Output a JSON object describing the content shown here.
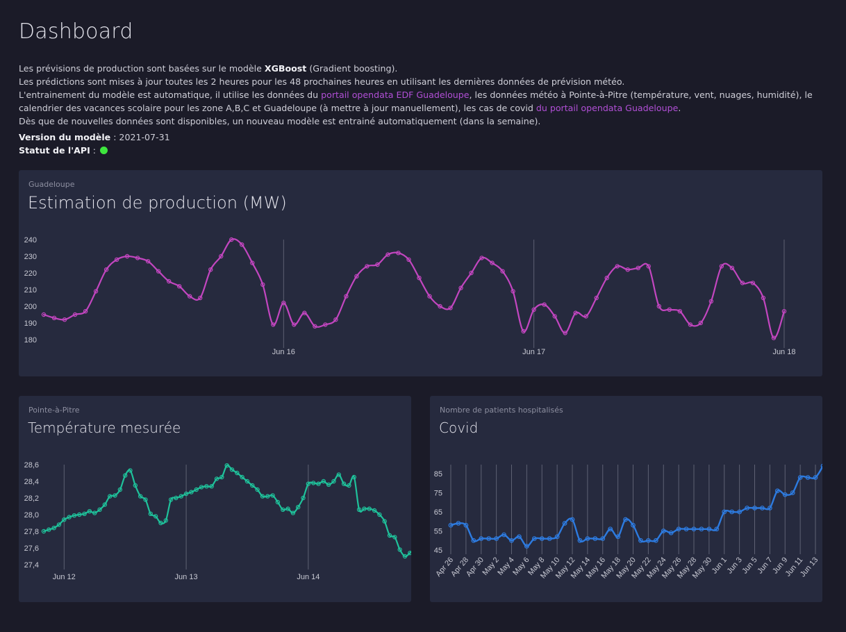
{
  "header": {
    "title": "Dashboard",
    "intro": {
      "line1_prefix": "Les prévisions de production sont basées sur le modèle ",
      "line1_bold": "XGBoost",
      "line1_suffix": " (Gradient boosting).",
      "line2": "Les prédictions sont mises à jour toutes les 2 heures pour les 48 prochaines heures en utilisant les dernières données de prévision météo.",
      "line3_prefix": "L'entrainement du modèle est automatique, il utilise les données du ",
      "link1": "portail opendata EDF Guadeloupe",
      "line3_mid": ", les données météo à Pointe-à-Pitre (température, vent, nuages, humidité), le calendrier des vacances scolaire pour les zone A,B,C et Guadeloupe (à mettre à jour manuellement), les cas de covid ",
      "link2": "du portail opendata Guadeloupe",
      "line3_suffix": ".",
      "line4": "Dès que de nouvelles données sont disponibles, un nouveau modèle est entrainé automatiquement (dans la semaine)."
    },
    "model_version_label": "Version du modèle",
    "model_version_value": " : 2021-07-31",
    "api_status_label": "Statut de l'API",
    "api_status_sep": " :",
    "api_status_color": "#3ee63e"
  },
  "cards": {
    "production": {
      "subtitle": "Guadeloupe",
      "title": "Estimation de production (MW)"
    },
    "temperature": {
      "subtitle": "Pointe-à-Pitre",
      "title": "Température mesurée"
    },
    "covid": {
      "subtitle": "Nombre de patients hospitalisés",
      "title": "Covid"
    }
  },
  "chart_data": [
    {
      "id": "production",
      "type": "line",
      "color": "#c346c0",
      "ylim": [
        180,
        240
      ],
      "yticks": [
        "180",
        "190",
        "200",
        "210",
        "220",
        "230",
        "240"
      ],
      "xlim": [
        0,
        74
      ],
      "xticks": [
        {
          "x": 23,
          "label": "Jun 16"
        },
        {
          "x": 47,
          "label": "Jun 17"
        },
        {
          "x": 71,
          "label": "Jun 18"
        }
      ],
      "grid": "vertical",
      "values": [
        195,
        193,
        192,
        195,
        197,
        209,
        222,
        228,
        230,
        229,
        227,
        221,
        215,
        212,
        206,
        205,
        222,
        230,
        240,
        237,
        226,
        213,
        189,
        202,
        189,
        196,
        188,
        189,
        192,
        206,
        218,
        224,
        225,
        231,
        232,
        228,
        217,
        206,
        200,
        199,
        211,
        220,
        229,
        226,
        221,
        209,
        185,
        198,
        201,
        194,
        184,
        196,
        194,
        205,
        217,
        224,
        222,
        223,
        224,
        200,
        198,
        197,
        189,
        190,
        203,
        224,
        223,
        214,
        214,
        205,
        181,
        197
      ]
    },
    {
      "id": "temperature",
      "type": "line",
      "color": "#1fc29b",
      "ylim": [
        27.4,
        28.6
      ],
      "yticks": [
        "27,4",
        "27,6",
        "27,8",
        "28,0",
        "28,2",
        "28,4",
        "28,6"
      ],
      "xlim": [
        0,
        71
      ],
      "xticks": [
        {
          "x": 4,
          "label": "Jun 12"
        },
        {
          "x": 28,
          "label": "Jun 13"
        },
        {
          "x": 52,
          "label": "Jun 14"
        }
      ],
      "grid": "vertical",
      "values": [
        27.8,
        27.82,
        27.84,
        27.88,
        27.94,
        27.97,
        27.99,
        28.0,
        28.01,
        28.04,
        28.02,
        28.06,
        28.12,
        28.22,
        28.23,
        28.3,
        28.47,
        28.53,
        28.35,
        28.22,
        28.18,
        28.01,
        27.98,
        27.9,
        27.93,
        28.18,
        28.2,
        28.22,
        28.25,
        28.27,
        28.3,
        28.33,
        28.34,
        28.34,
        28.43,
        28.45,
        28.59,
        28.54,
        28.5,
        28.45,
        28.4,
        28.35,
        28.3,
        28.22,
        28.22,
        28.23,
        28.15,
        28.06,
        28.07,
        28.02,
        28.09,
        28.2,
        28.37,
        28.38,
        28.37,
        28.4,
        28.36,
        28.4,
        28.48,
        28.37,
        28.35,
        28.45,
        28.06,
        28.07,
        28.07,
        28.05,
        28.0,
        27.92,
        27.75,
        27.73,
        27.58,
        27.5,
        27.54,
        27.59
      ]
    },
    {
      "id": "covid",
      "type": "line",
      "color": "#2d7be0",
      "ylim": [
        45,
        85
      ],
      "yticks": [
        "45",
        "55",
        "65",
        "75",
        "85"
      ],
      "xlim": [
        0,
        48
      ],
      "xticks": [
        {
          "x": 0,
          "label": "Apr 26"
        },
        {
          "x": 2,
          "label": "Apr 28"
        },
        {
          "x": 4,
          "label": "Apr 30"
        },
        {
          "x": 6,
          "label": "May 2"
        },
        {
          "x": 8,
          "label": "May 4"
        },
        {
          "x": 10,
          "label": "May 6"
        },
        {
          "x": 12,
          "label": "May 8"
        },
        {
          "x": 14,
          "label": "May 10"
        },
        {
          "x": 16,
          "label": "May 12"
        },
        {
          "x": 18,
          "label": "May 14"
        },
        {
          "x": 20,
          "label": "May 16"
        },
        {
          "x": 22,
          "label": "May 18"
        },
        {
          "x": 24,
          "label": "May 20"
        },
        {
          "x": 26,
          "label": "May 22"
        },
        {
          "x": 28,
          "label": "May 24"
        },
        {
          "x": 30,
          "label": "May 26"
        },
        {
          "x": 32,
          "label": "May 28"
        },
        {
          "x": 34,
          "label": "May 30"
        },
        {
          "x": 36,
          "label": "Jun 1"
        },
        {
          "x": 38,
          "label": "Jun 3"
        },
        {
          "x": 40,
          "label": "Jun 5"
        },
        {
          "x": 42,
          "label": "Jun 7"
        },
        {
          "x": 44,
          "label": "Jun 9"
        },
        {
          "x": 46,
          "label": "Jun 11"
        },
        {
          "x": 48,
          "label": "Jun 13"
        }
      ],
      "grid": "vertical",
      "values": [
        58,
        59,
        58,
        50,
        51,
        51,
        51,
        53,
        50,
        52,
        47,
        51,
        51,
        51,
        52,
        59,
        61,
        50,
        51,
        51,
        51,
        56,
        52,
        61,
        58,
        50,
        50,
        50,
        55,
        54,
        56,
        56,
        56,
        56,
        56,
        56,
        65,
        65,
        65,
        67,
        67,
        67,
        67,
        76,
        74,
        75,
        83,
        83,
        83,
        89
      ]
    }
  ]
}
